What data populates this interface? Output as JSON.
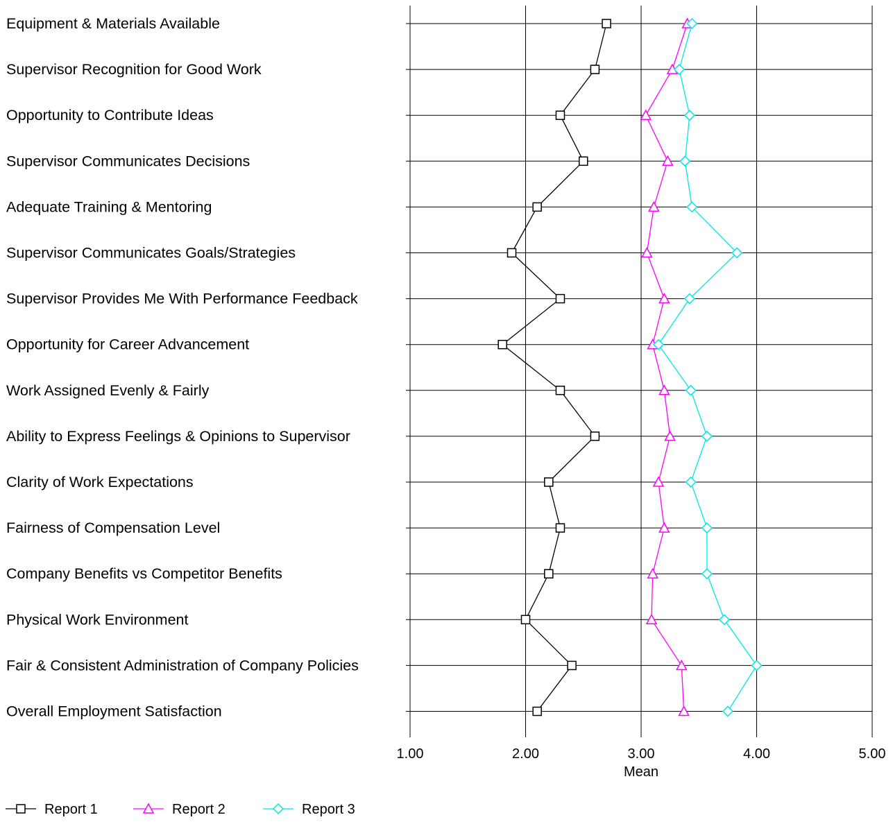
{
  "chart_data": {
    "type": "line",
    "orientation": "horizontal-categories",
    "categories": [
      "Equipment & Materials Available",
      "Supervisor Recognition for Good Work",
      "Opportunity to Contribute Ideas",
      "Supervisor Communicates Decisions",
      "Adequate Training & Mentoring",
      "Supervisor Communicates Goals/Strategies",
      "Supervisor Provides Me With Performance Feedback",
      "Opportunity for Career Advancement",
      "Work Assigned Evenly & Fairly",
      "Ability to Express Feelings & Opinions to Supervisor",
      "Clarity of Work Expectations",
      "Fairness of Compensation Level",
      "Company Benefits vs Competitor Benefits",
      "Physical Work Environment",
      "Fair & Consistent Administration of Company Policies",
      "Overall Employment Satisfaction"
    ],
    "series": [
      {
        "name": "Report 1",
        "color": "#000000",
        "marker": "square",
        "values": [
          2.7,
          2.6,
          2.3,
          2.5,
          2.1,
          1.88,
          2.3,
          1.8,
          2.3,
          2.6,
          2.2,
          2.3,
          2.2,
          2.0,
          2.4,
          2.1
        ]
      },
      {
        "name": "Report 2",
        "color": "#ff00ff",
        "marker": "triangle",
        "values": [
          3.4,
          3.27,
          3.04,
          3.23,
          3.11,
          3.05,
          3.2,
          3.1,
          3.2,
          3.25,
          3.15,
          3.2,
          3.1,
          3.09,
          3.35,
          3.37
        ]
      },
      {
        "name": "Report 3",
        "color": "#00e5e5",
        "marker": "diamond",
        "values": [
          3.44,
          3.33,
          3.42,
          3.38,
          3.44,
          3.83,
          3.42,
          3.15,
          3.43,
          3.57,
          3.43,
          3.57,
          3.57,
          3.72,
          4.0,
          3.75
        ]
      }
    ],
    "xlim": [
      1.0,
      5.0
    ],
    "xticks": [
      "1.00",
      "2.00",
      "3.00",
      "4.00",
      "5.00"
    ],
    "xtick_values": [
      1,
      2,
      3,
      4,
      5
    ],
    "xlabel": "Mean",
    "grid": true,
    "legend_position": "bottom-left"
  }
}
